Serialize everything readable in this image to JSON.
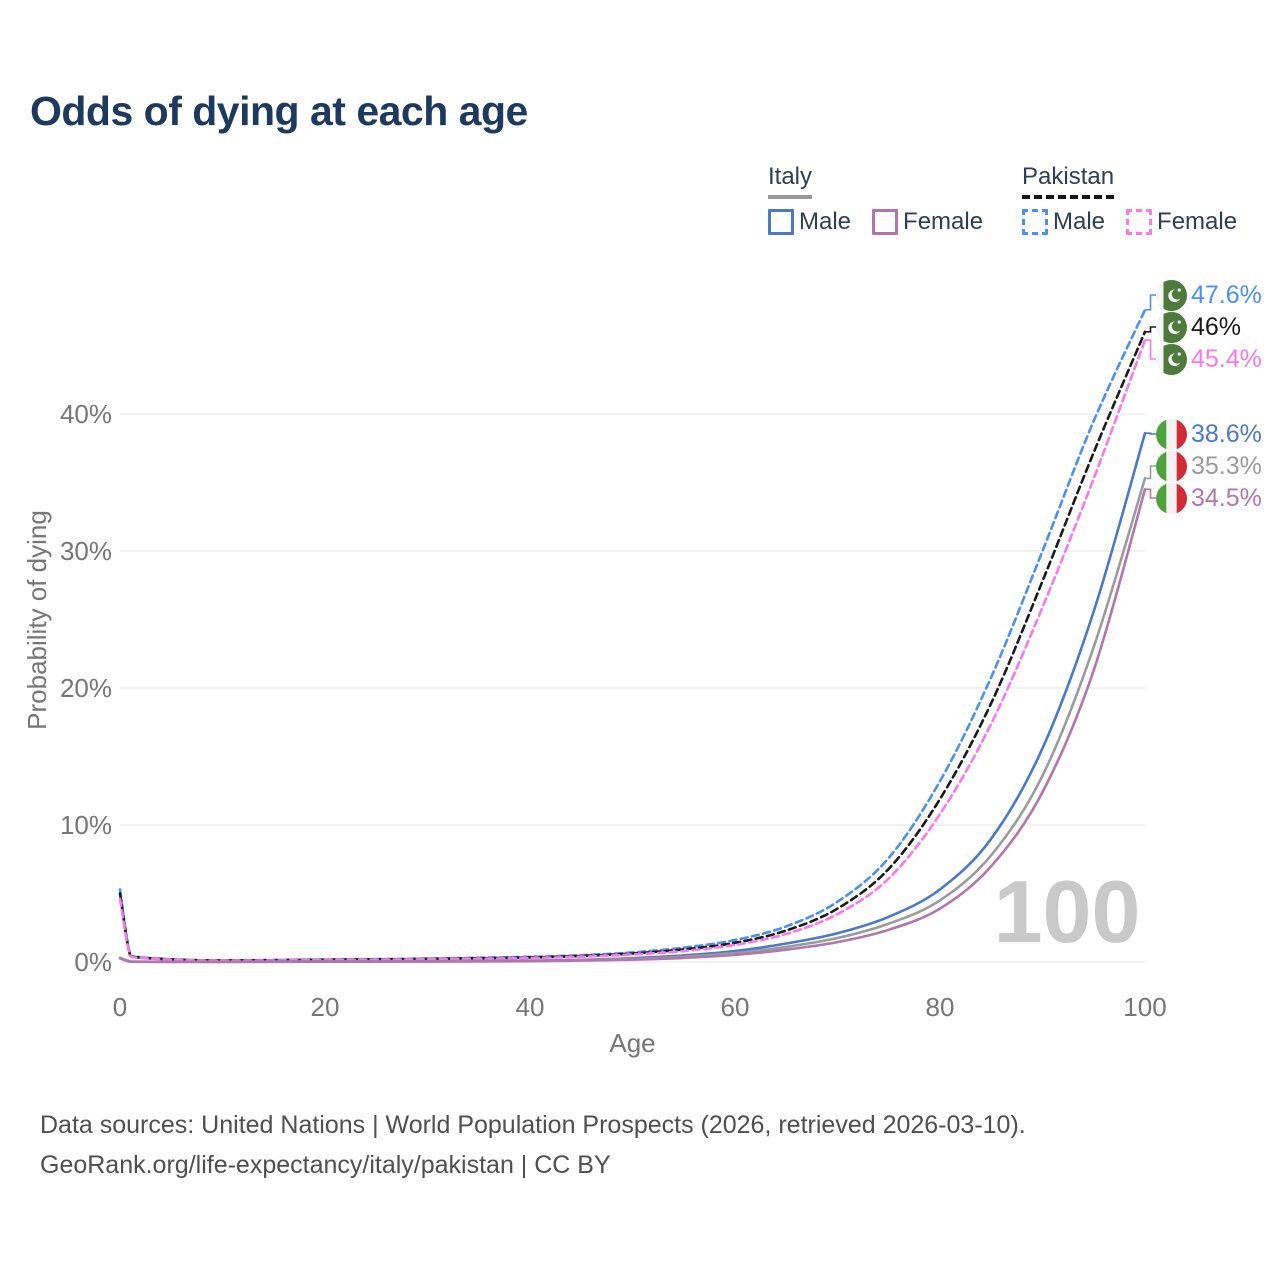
{
  "title": "Odds of dying at each age",
  "watermark": "100",
  "legend": {
    "groups": [
      {
        "country": "Italy",
        "style": "solid",
        "items": [
          {
            "label": "Male"
          },
          {
            "label": "Female"
          }
        ]
      },
      {
        "country": "Pakistan",
        "style": "dashed",
        "items": [
          {
            "label": "Male"
          },
          {
            "label": "Female"
          }
        ]
      }
    ]
  },
  "footer": {
    "line1": "Data sources: United Nations | World Population Prospects (2026, retrieved 2026-03-10).",
    "line2": "GeoRank.org/life-expectancy/italy/pakistan | CC BY"
  },
  "ui_colors": {
    "title": "#1d3a5e",
    "legend_text": "#2f3e56",
    "axis_text": "#767676",
    "grid": "#e9e9e9",
    "watermark": "#c9c9c9",
    "footer_text": "#4f4f4f",
    "italy_underline": "#999999",
    "pakistan_underline": "#141414"
  },
  "chart_data": {
    "type": "line",
    "title": "Odds of dying at each age",
    "xlabel": "Age",
    "ylabel": "Probability of dying",
    "xlim": [
      0,
      100
    ],
    "ylim_pct": [
      0,
      49
    ],
    "x_ticks": [
      0,
      20,
      40,
      60,
      80,
      100
    ],
    "y_ticks": [
      {
        "value": 0,
        "label": "0%"
      },
      {
        "value": 10,
        "label": "10%"
      },
      {
        "value": 20,
        "label": "20%"
      },
      {
        "value": 30,
        "label": "30%"
      },
      {
        "value": 40,
        "label": "40%"
      }
    ],
    "grid": "horizontal",
    "legend_position": "top-right",
    "x": [
      0,
      1,
      2,
      5,
      10,
      20,
      30,
      40,
      45,
      50,
      55,
      60,
      65,
      70,
      75,
      80,
      85,
      90,
      95,
      100
    ],
    "series": [
      {
        "name": "Italy Male",
        "country": "Italy",
        "sex": "male",
        "color": "#4b79c4",
        "dash": false,
        "flag": "italy",
        "end_label": "38.6%",
        "values": [
          0.3,
          0.03,
          0.02,
          0.01,
          0.01,
          0.04,
          0.05,
          0.1,
          0.16,
          0.28,
          0.48,
          0.8,
          1.35,
          2.1,
          3.3,
          5.3,
          9.0,
          15.6,
          25.6,
          38.6
        ]
      },
      {
        "name": "Italy",
        "country": "Italy",
        "sex": "total",
        "color": "#9b9b9b",
        "dash": false,
        "flag": "italy",
        "end_label": "35.3%",
        "values": [
          0.28,
          0.03,
          0.02,
          0.01,
          0.01,
          0.03,
          0.04,
          0.08,
          0.13,
          0.22,
          0.38,
          0.65,
          1.1,
          1.75,
          2.8,
          4.5,
          7.8,
          13.6,
          23.0,
          35.3
        ]
      },
      {
        "name": "Italy Female",
        "country": "Italy",
        "sex": "female",
        "color": "#b077ae",
        "dash": false,
        "flag": "italy",
        "end_label": "34.5%",
        "values": [
          0.26,
          0.02,
          0.01,
          0.01,
          0.01,
          0.02,
          0.03,
          0.06,
          0.1,
          0.17,
          0.3,
          0.52,
          0.9,
          1.45,
          2.35,
          3.9,
          7.0,
          12.4,
          21.3,
          34.5
        ]
      },
      {
        "name": "Pakistan Male",
        "country": "Pakistan",
        "sex": "male",
        "color": "#4b8ff2",
        "dash": true,
        "flag": "pakistan",
        "end_label": "47.6%",
        "values": [
          5.3,
          0.5,
          0.35,
          0.2,
          0.12,
          0.18,
          0.25,
          0.38,
          0.5,
          0.7,
          1.05,
          1.6,
          2.6,
          4.4,
          7.6,
          13.2,
          20.8,
          30.0,
          39.5,
          47.6
        ]
      },
      {
        "name": "Pakistan",
        "country": "Pakistan",
        "sex": "total",
        "color": "#1a1a1a",
        "dash": true,
        "flag": "pakistan",
        "end_label": "46%",
        "values": [
          5.0,
          0.46,
          0.32,
          0.19,
          0.11,
          0.16,
          0.22,
          0.33,
          0.44,
          0.62,
          0.92,
          1.4,
          2.3,
          3.9,
          6.8,
          11.9,
          18.9,
          27.8,
          37.2,
          46.0
        ]
      },
      {
        "name": "Pakistan Female",
        "country": "Pakistan",
        "sex": "female",
        "color": "#fb78e8",
        "dash": true,
        "flag": "pakistan",
        "end_label": "45.4%",
        "values": [
          4.6,
          0.42,
          0.3,
          0.17,
          0.1,
          0.14,
          0.2,
          0.29,
          0.39,
          0.55,
          0.8,
          1.25,
          2.05,
          3.5,
          6.1,
          10.8,
          17.4,
          25.9,
          35.3,
          45.4
        ]
      }
    ],
    "flag_colors": {
      "pakistan_green": "#4b7a3a",
      "pakistan_white": "#f5f5f5",
      "italy_green": "#4da23d",
      "italy_white": "#f2f2f2",
      "italy_red": "#d12b36"
    }
  }
}
